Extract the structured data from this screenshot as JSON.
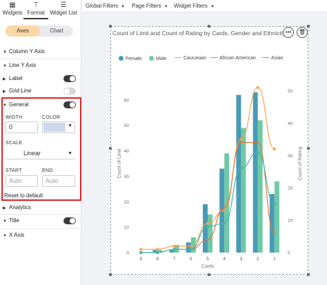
{
  "panel": {
    "tabs": [
      {
        "label": "Widgets",
        "icon": "widgets-grid-icon"
      },
      {
        "label": "Format",
        "icon": "paint-roller-icon"
      },
      {
        "label": "Widget List",
        "icon": "list-icon"
      }
    ],
    "segments": {
      "active": "Axes",
      "inactive": "Chart"
    },
    "sections": {
      "column_y_axis": "Column Y Axis",
      "line_y_axis": "Line Y Axis",
      "label": "Label",
      "grid_line": "Grid Line",
      "general": "General",
      "analytics": "Analytics",
      "title": "Title",
      "x_axis": "X Axis"
    },
    "general": {
      "width_label": "WIDTH",
      "width_value": "0",
      "color_label": "COLOR",
      "color_value": "#cdd8ee",
      "scale_label": "SCALE",
      "scale_value": "Linear",
      "start_label": "START",
      "start_placeholder": "Auto",
      "end_label": "END",
      "end_placeholder": "Auto",
      "reset_label": "Reset to default"
    }
  },
  "topbar": {
    "filters": [
      "Global Filters",
      "Page Filters",
      "Widget Filters"
    ]
  },
  "card": {
    "title": "Count of Limit and Count of Rating by Cards, Gender and Ethnicity",
    "more_icon": "more-horizontal-icon",
    "delete_icon": "trash-icon"
  },
  "legend": [
    {
      "name": "Female",
      "color": "#4a9ab5",
      "kind": "bar"
    },
    {
      "name": "Male",
      "color": "#6fcaa6",
      "kind": "bar"
    },
    {
      "name": "Caucasian",
      "color": "#f5a34a",
      "kind": "line"
    },
    {
      "name": "African American",
      "color": "#e8743b",
      "kind": "line"
    },
    {
      "name": "Asian",
      "color": "#3fb8af",
      "kind": "line"
    }
  ],
  "chart_data": {
    "type": "bar",
    "categories": [
      "9",
      "8",
      "7",
      "6",
      "5",
      "4",
      "3",
      "2",
      "1"
    ],
    "xlabel": "Cards",
    "ylabel": "Count of Limit",
    "y2label": "Count of Rating",
    "ylim": [
      0,
      70
    ],
    "y_ticks": [
      0,
      10,
      20,
      30,
      40,
      50,
      60
    ],
    "y2lim": [
      0,
      55
    ],
    "y2_ticks": [
      0,
      10,
      20,
      30,
      40,
      50
    ],
    "series": [
      {
        "name": "Female",
        "kind": "bar",
        "axis": "left",
        "values": [
          0,
          1,
          1,
          4,
          19,
          33,
          62,
          63,
          23
        ]
      },
      {
        "name": "Male",
        "kind": "bar",
        "axis": "left",
        "values": [
          0,
          1,
          3,
          6,
          15,
          39,
          49,
          52,
          28
        ]
      },
      {
        "name": "Caucasian",
        "kind": "line",
        "axis": "right",
        "values": [
          1,
          1,
          2,
          2,
          9,
          13,
          35,
          51,
          32
        ]
      },
      {
        "name": "African American",
        "kind": "line",
        "axis": "right",
        "values": [
          0,
          0,
          1,
          1,
          4,
          14,
          34,
          34,
          6
        ]
      },
      {
        "name": "Asian",
        "kind": "line",
        "axis": "right",
        "values": [
          0,
          0,
          1,
          1,
          8,
          9,
          26,
          31,
          15
        ]
      }
    ]
  }
}
